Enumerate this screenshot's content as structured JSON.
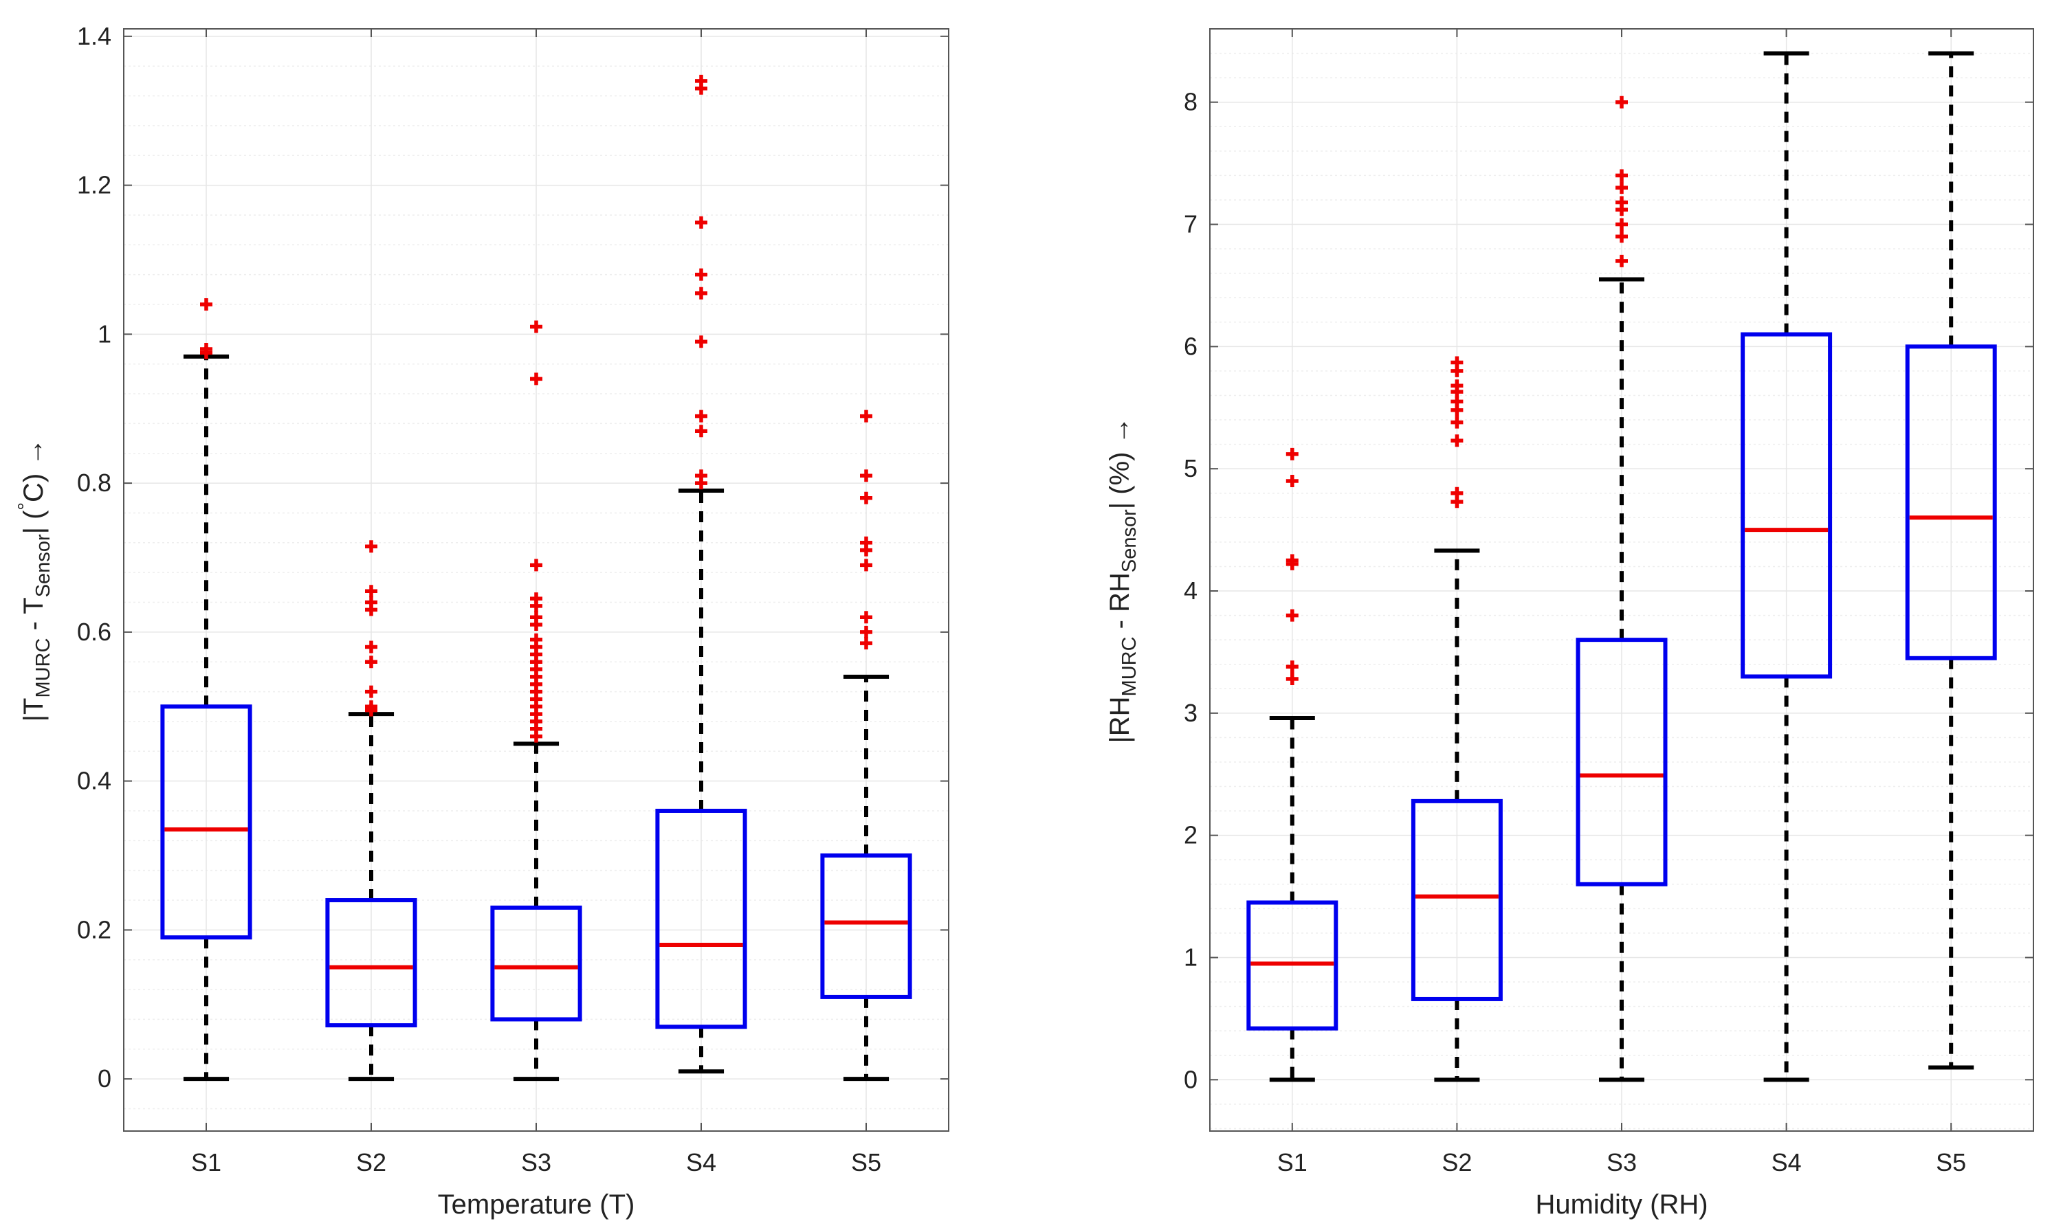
{
  "chart_data": [
    {
      "type": "boxplot",
      "xlabel": "Temperature (T)",
      "ylabel": {
        "prefix": "|T",
        "sub1": "MURC",
        "mid": " - T",
        "sub2": "Sensor",
        "suffix": "| (",
        "unit_mark": "°",
        "unit": "C) →"
      },
      "ylim": [
        -0.07,
        1.41
      ],
      "yticks": [
        0,
        0.2,
        0.4,
        0.6,
        0.8,
        1,
        1.2,
        1.4
      ],
      "ytick_labels": [
        "0",
        "0.2",
        "0.4",
        "0.6",
        "0.8",
        "1",
        "1.2",
        "1.4"
      ],
      "grid": true,
      "categories": [
        "S1",
        "S2",
        "S3",
        "S4",
        "S5"
      ],
      "boxes": [
        {
          "name": "S1",
          "whisker_low": 0,
          "q1": 0.19,
          "median": 0.335,
          "q3": 0.5,
          "whisker_high": 0.97,
          "outliers": [
            0.975,
            0.98,
            1.04
          ]
        },
        {
          "name": "S2",
          "whisker_low": 0,
          "q1": 0.072,
          "median": 0.15,
          "q3": 0.24,
          "whisker_high": 0.49,
          "outliers": [
            0.495,
            0.5,
            0.52,
            0.56,
            0.58,
            0.63,
            0.64,
            0.655,
            0.715
          ]
        },
        {
          "name": "S3",
          "whisker_low": 0,
          "q1": 0.08,
          "median": 0.15,
          "q3": 0.23,
          "whisker_high": 0.45,
          "outliers": [
            0.46,
            0.47,
            0.48,
            0.49,
            0.5,
            0.51,
            0.52,
            0.53,
            0.54,
            0.55,
            0.56,
            0.57,
            0.58,
            0.59,
            0.61,
            0.62,
            0.635,
            0.645,
            0.69,
            0.94,
            1.01
          ]
        },
        {
          "name": "S4",
          "whisker_low": 0.01,
          "q1": 0.07,
          "median": 0.18,
          "q3": 0.36,
          "whisker_high": 0.79,
          "outliers": [
            0.8,
            0.81,
            0.87,
            0.89,
            0.99,
            1.055,
            1.08,
            1.15,
            1.33,
            1.34
          ]
        },
        {
          "name": "S5",
          "whisker_low": 0,
          "q1": 0.11,
          "median": 0.21,
          "q3": 0.3,
          "whisker_high": 0.54,
          "outliers": [
            0.585,
            0.6,
            0.62,
            0.69,
            0.71,
            0.72,
            0.78,
            0.81,
            0.89
          ]
        }
      ]
    },
    {
      "type": "boxplot",
      "xlabel": "Humidity (RH)",
      "ylabel": {
        "prefix": "|RH",
        "sub1": "MURC",
        "mid": " - RH",
        "sub2": "Sensor",
        "suffix": "| (%) →",
        "unit_mark": "",
        "unit": ""
      },
      "ylim": [
        -0.42,
        8.6
      ],
      "yticks": [
        0,
        1,
        2,
        3,
        4,
        5,
        6,
        7,
        8
      ],
      "ytick_labels": [
        "0",
        "1",
        "2",
        "3",
        "4",
        "5",
        "6",
        "7",
        "8"
      ],
      "grid": true,
      "categories": [
        "S1",
        "S2",
        "S3",
        "S4",
        "S5"
      ],
      "boxes": [
        {
          "name": "S1",
          "whisker_low": 0,
          "q1": 0.42,
          "median": 0.95,
          "q3": 1.45,
          "whisker_high": 2.96,
          "outliers": [
            3.28,
            3.38,
            3.8,
            4.22,
            4.25,
            4.9,
            5.12
          ]
        },
        {
          "name": "S2",
          "whisker_low": 0,
          "q1": 0.66,
          "median": 1.5,
          "q3": 2.28,
          "whisker_high": 4.33,
          "outliers": [
            4.73,
            4.8,
            5.23,
            5.38,
            5.48,
            5.55,
            5.63,
            5.68,
            5.8,
            5.87
          ]
        },
        {
          "name": "S3",
          "whisker_low": 0,
          "q1": 1.6,
          "median": 2.49,
          "q3": 3.6,
          "whisker_high": 6.55,
          "outliers": [
            6.7,
            6.9,
            7.0,
            7.12,
            7.18,
            7.3,
            7.4,
            8.0
          ]
        },
        {
          "name": "S4",
          "whisker_low": 0,
          "q1": 3.3,
          "median": 4.5,
          "q3": 6.1,
          "whisker_high": 8.4,
          "outliers": []
        },
        {
          "name": "S5",
          "whisker_low": 0.1,
          "q1": 3.45,
          "median": 4.6,
          "q3": 6.0,
          "whisker_high": 8.4,
          "outliers": []
        }
      ]
    }
  ],
  "colors": {
    "box": "#0000ee",
    "median": "#ee0000",
    "outlier": "#ee0000",
    "whisker": "#000000",
    "grid_major": "#e6e6e6",
    "grid_minor": "#eeeeee",
    "axis": "#555555"
  }
}
